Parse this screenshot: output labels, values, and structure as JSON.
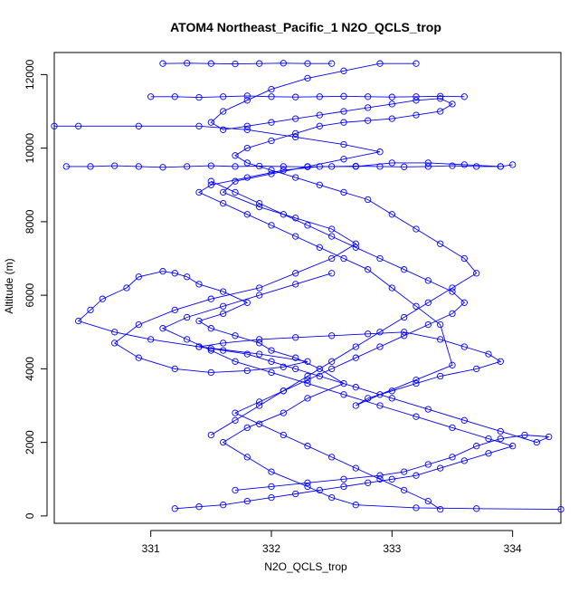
{
  "chart_data": {
    "type": "line",
    "title": "ATOM4 Northeast_Pacific_1 N2O_QCLS_trop",
    "xlabel": "N2O_QCLS_trop",
    "ylabel": "Altitude (m)",
    "xlim": [
      330.2,
      334.4
    ],
    "ylim": [
      -200,
      12600
    ],
    "x_ticks": [
      331,
      332,
      333,
      334
    ],
    "y_ticks": [
      0,
      2000,
      4000,
      6000,
      8000,
      10000,
      12000
    ],
    "x_tick_labels": [
      "331",
      "332",
      "333",
      "334"
    ],
    "y_tick_labels": [
      "0",
      "2000",
      "4000",
      "6000",
      "8000",
      "10000",
      "12000"
    ],
    "grid": false,
    "legend": "none",
    "marker": "open-circle",
    "color": "#0000ff",
    "series": [
      {
        "x": [
          334.4,
          333.7,
          333.2,
          332.7,
          332.5,
          332.3,
          332.0,
          331.8,
          331.6,
          331.8,
          332.1,
          332.3,
          332.6,
          332.4,
          332.2,
          332.0,
          331.9,
          331.7,
          331.5,
          331.4,
          331.6,
          331.8,
          331.6,
          331.4,
          331.3,
          331.2,
          331.1,
          330.9,
          330.8,
          330.6,
          330.5,
          330.4,
          330.7,
          331.0,
          331.4,
          331.9,
          332.3,
          332.1,
          331.8,
          331.5,
          331.2,
          330.9,
          330.7,
          330.9,
          331.2,
          331.5,
          331.9,
          332.2,
          332.5,
          332.7,
          332.5,
          332.2,
          331.9,
          331.6,
          331.7,
          332.0,
          332.3,
          332.6,
          332.9,
          332.6,
          332.2,
          331.8,
          331.4,
          330.9,
          330.4,
          330.2
        ],
        "y": [
          180,
          200,
          220,
          300,
          500,
          800,
          1200,
          1600,
          2000,
          2400,
          2800,
          3200,
          3600,
          4000,
          4300,
          4500,
          4700,
          4900,
          5100,
          5300,
          5500,
          5800,
          6100,
          6300,
          6500,
          6600,
          6650,
          6500,
          6200,
          5900,
          5600,
          5300,
          5000,
          4800,
          4600,
          4400,
          4200,
          4050,
          3950,
          3900,
          4000,
          4300,
          4700,
          5200,
          5600,
          5900,
          6200,
          6600,
          7000,
          7400,
          7800,
          8100,
          8400,
          8800,
          9100,
          9300,
          9500,
          9700,
          9900,
          10100,
          10300,
          10500,
          10600,
          10600,
          10600,
          10600
        ]
      },
      {
        "x": [
          331.7,
          332.0,
          332.3,
          332.6,
          332.9,
          333.1,
          333.3,
          333.5,
          333.7,
          333.9,
          334.1,
          334.3,
          334.2,
          333.9,
          333.6,
          333.3,
          333.0,
          332.7,
          332.4,
          332.2,
          332.0,
          331.8,
          331.6,
          331.5,
          331.4,
          331.6,
          331.9,
          332.2,
          332.5,
          332.8,
          333.1,
          333.4,
          333.6,
          333.8,
          333.9,
          333.7,
          333.4,
          333.2,
          333.0,
          332.8,
          332.7,
          332.9,
          333.2,
          333.5,
          333.4,
          333.2,
          333.0,
          332.8,
          332.6,
          332.4,
          332.2,
          332.0,
          331.8,
          331.6,
          331.4,
          331.5,
          331.8,
          332.1,
          332.4,
          332.7,
          333.0,
          333.3,
          333.6,
          333.9,
          334.0
        ],
        "y": [
          700,
          800,
          900,
          1000,
          1100,
          1200,
          1400,
          1600,
          1900,
          2100,
          2200,
          2150,
          2000,
          2300,
          2600,
          2900,
          3200,
          3500,
          3800,
          4000,
          4200,
          4400,
          4500,
          4550,
          4600,
          4700,
          4800,
          4850,
          4900,
          4950,
          5000,
          4800,
          4600,
          4400,
          4200,
          4000,
          3800,
          3600,
          3400,
          3200,
          3000,
          3300,
          3700,
          4100,
          5200,
          5700,
          6200,
          6700,
          7000,
          7300,
          7600,
          7900,
          8200,
          8500,
          8800,
          9000,
          9200,
          9400,
          9500,
          9500,
          9600,
          9600,
          9550,
          9500,
          9550
        ]
      },
      {
        "x": [
          331.5,
          331.7,
          331.9,
          332.1,
          332.3,
          332.5,
          332.7,
          332.9,
          333.1,
          333.3,
          333.5,
          333.7,
          333.6,
          333.4,
          333.2,
          333.0,
          332.8,
          332.6,
          332.4,
          332.2,
          332.0,
          331.8,
          331.7,
          331.8,
          332.0,
          332.2,
          332.4,
          332.6,
          332.8,
          333.0,
          333.2,
          333.4,
          333.5,
          333.4,
          333.2,
          333.0,
          332.8,
          332.6,
          332.4,
          332.2,
          332.0,
          331.8,
          331.6,
          331.5,
          331.6,
          331.8,
          332.0,
          332.3,
          332.6,
          332.9,
          333.2
        ],
        "y": [
          2200,
          2600,
          3000,
          3400,
          3800,
          4200,
          4600,
          5000,
          5400,
          5800,
          6200,
          6600,
          7000,
          7400,
          7800,
          8200,
          8600,
          8800,
          9000,
          9200,
          9400,
          9600,
          9800,
          10000,
          10200,
          10400,
          10600,
          10700,
          10750,
          10800,
          10900,
          11000,
          11200,
          11350,
          11300,
          11200,
          11100,
          11000,
          10900,
          10800,
          10700,
          10600,
          10500,
          10700,
          11000,
          11300,
          11600,
          11900,
          12100,
          12300,
          12300
        ]
      },
      {
        "x": [
          331.2,
          331.4,
          331.6,
          331.8,
          332.0,
          332.2,
          332.4,
          332.6,
          332.8,
          333.0,
          333.2,
          333.4,
          333.6,
          333.8,
          334.0,
          333.8,
          333.5,
          333.2,
          332.9,
          332.6,
          332.3,
          332.0,
          331.7,
          331.5,
          331.3,
          331.1,
          331.3,
          331.6,
          331.9,
          332.2,
          332.5
        ],
        "y": [
          200,
          250,
          300,
          400,
          500,
          600,
          700,
          800,
          900,
          1000,
          1100,
          1300,
          1500,
          1700,
          1900,
          2100,
          2400,
          2700,
          3000,
          3300,
          3600,
          3900,
          4200,
          4500,
          4800,
          5100,
          5400,
          5700,
          6000,
          6300,
          6600
        ]
      },
      {
        "x": [
          333.4,
          333.3,
          333.1,
          332.9,
          332.7,
          332.5,
          332.3,
          332.1,
          331.9,
          331.7,
          331.9,
          332.1,
          332.3,
          332.5,
          332.7,
          332.9,
          333.1,
          333.3,
          333.5,
          333.6,
          333.5,
          333.3,
          333.1,
          332.9,
          332.7,
          332.5,
          332.3,
          332.1,
          331.9,
          331.7,
          331.5
        ],
        "y": [
          180,
          400,
          700,
          1000,
          1300,
          1600,
          1900,
          2200,
          2500,
          2800,
          3100,
          3400,
          3700,
          4000,
          4300,
          4600,
          4900,
          5200,
          5500,
          5800,
          6100,
          6400,
          6700,
          7000,
          7300,
          7600,
          7900,
          8200,
          8500,
          8800,
          9100
        ]
      },
      {
        "x": [
          330.3,
          330.5,
          330.7,
          330.9,
          331.1,
          331.3,
          331.5,
          331.7,
          331.9,
          332.1,
          332.3,
          332.5,
          332.7,
          332.9,
          333.1,
          333.3,
          333.5,
          333.7,
          333.9
        ],
        "y": [
          9500,
          9500,
          9520,
          9500,
          9480,
          9500,
          9520,
          9500,
          9510,
          9500,
          9490,
          9500,
          9510,
          9500,
          9490,
          9500,
          9520,
          9500,
          9500
        ]
      },
      {
        "x": [
          331.0,
          331.2,
          331.4,
          331.6,
          331.8,
          332.0,
          332.2,
          332.4,
          332.6,
          332.8,
          333.0,
          333.2,
          333.4,
          333.6
        ],
        "y": [
          11400,
          11400,
          11380,
          11400,
          11420,
          11400,
          11390,
          11400,
          11410,
          11400,
          11390,
          11400,
          11410,
          11400
        ]
      },
      {
        "x": [
          331.1,
          331.3,
          331.5,
          331.7,
          331.9,
          332.1,
          332.3,
          332.5
        ],
        "y": [
          12300,
          12310,
          12300,
          12290,
          12300,
          12310,
          12300,
          12300
        ]
      }
    ]
  }
}
